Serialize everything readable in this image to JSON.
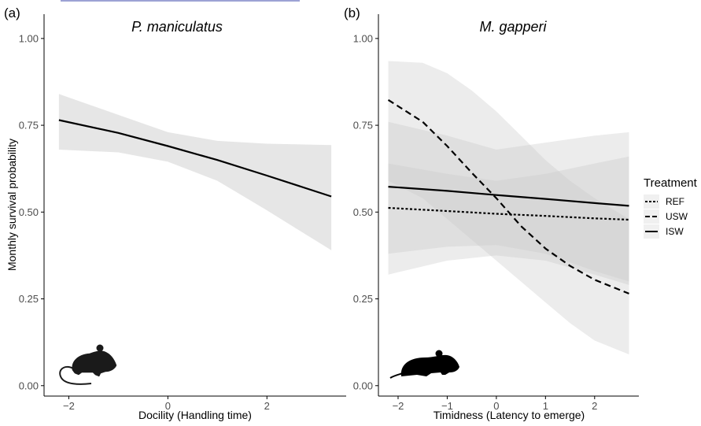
{
  "chart_data": [
    {
      "type": "line",
      "panel_label": "(a)",
      "title": "P. maniculatus",
      "xlabel": "Docility (Handling time)",
      "ylabel": "Monthly survival probability",
      "xlim": [
        -2.5,
        3.6
      ],
      "ylim": [
        -0.03,
        1.07
      ],
      "xticks": [
        -2,
        0,
        2
      ],
      "yticks": [
        0.0,
        0.25,
        0.5,
        0.75,
        1.0
      ],
      "xtick_labels": [
        "−2",
        "0",
        "2"
      ],
      "ytick_labels": [
        "0.00",
        "0.25",
        "0.50",
        "0.75",
        "1.00"
      ],
      "series": [
        {
          "style": "solid",
          "x": [
            -2.2,
            -1.0,
            0.0,
            1.0,
            2.0,
            3.3
          ],
          "y": [
            0.765,
            0.728,
            0.69,
            0.65,
            0.605,
            0.545
          ],
          "lower": [
            0.68,
            0.672,
            0.645,
            0.59,
            0.505,
            0.39
          ],
          "upper": [
            0.84,
            0.78,
            0.73,
            0.705,
            0.697,
            0.693
          ]
        }
      ],
      "icon": "mouse-silhouette-icon"
    },
    {
      "type": "line",
      "panel_label": "(b)",
      "title": "M. gapperi",
      "xlabel": "Timidness (Latency to emerge)",
      "ylabel": "",
      "xlim": [
        -2.4,
        2.9
      ],
      "ylim": [
        -0.03,
        1.07
      ],
      "xticks": [
        -2,
        -1,
        0,
        1,
        2
      ],
      "yticks": [
        0.0,
        0.25,
        0.5,
        0.75,
        1.0
      ],
      "xtick_labels": [
        "−2",
        "−1",
        "0",
        "1",
        "2"
      ],
      "ytick_labels": [
        "0.00",
        "0.25",
        "0.50",
        "0.75",
        "1.00"
      ],
      "legend_title": "Treatment",
      "legend_position": "right",
      "series": [
        {
          "name": "REF",
          "style": "dotted",
          "x": [
            -2.2,
            -1,
            0,
            1,
            2,
            2.7
          ],
          "y": [
            0.512,
            0.503,
            0.495,
            0.489,
            0.482,
            0.478
          ],
          "lower": [
            0.38,
            0.4,
            0.405,
            0.38,
            0.33,
            0.3
          ],
          "upper": [
            0.64,
            0.61,
            0.59,
            0.61,
            0.64,
            0.66
          ]
        },
        {
          "name": "USW",
          "style": "dashed",
          "x": [
            -2.2,
            -1.5,
            -1,
            -0.5,
            0,
            0.5,
            1,
            1.5,
            2,
            2.7
          ],
          "y": [
            0.823,
            0.76,
            0.69,
            0.613,
            0.54,
            0.46,
            0.395,
            0.345,
            0.305,
            0.265
          ],
          "lower": [
            0.59,
            0.54,
            0.48,
            0.42,
            0.36,
            0.3,
            0.24,
            0.18,
            0.13,
            0.09
          ],
          "upper": [
            0.935,
            0.93,
            0.9,
            0.85,
            0.79,
            0.72,
            0.65,
            0.59,
            0.54,
            0.48
          ]
        },
        {
          "name": "ISW",
          "style": "solid",
          "x": [
            -2.2,
            -1,
            0,
            1,
            2,
            2.7
          ],
          "y": [
            0.573,
            0.561,
            0.549,
            0.538,
            0.526,
            0.518
          ],
          "lower": [
            0.32,
            0.36,
            0.375,
            0.36,
            0.32,
            0.29
          ],
          "upper": [
            0.76,
            0.72,
            0.68,
            0.7,
            0.72,
            0.73
          ]
        }
      ],
      "icon": "vole-silhouette-icon"
    }
  ],
  "colors": {
    "ribbon": "#c8c8c8",
    "line": "#000000",
    "axis": "#000000",
    "tick_text": "#4d4d4d",
    "header_line": "#7b84c6"
  }
}
